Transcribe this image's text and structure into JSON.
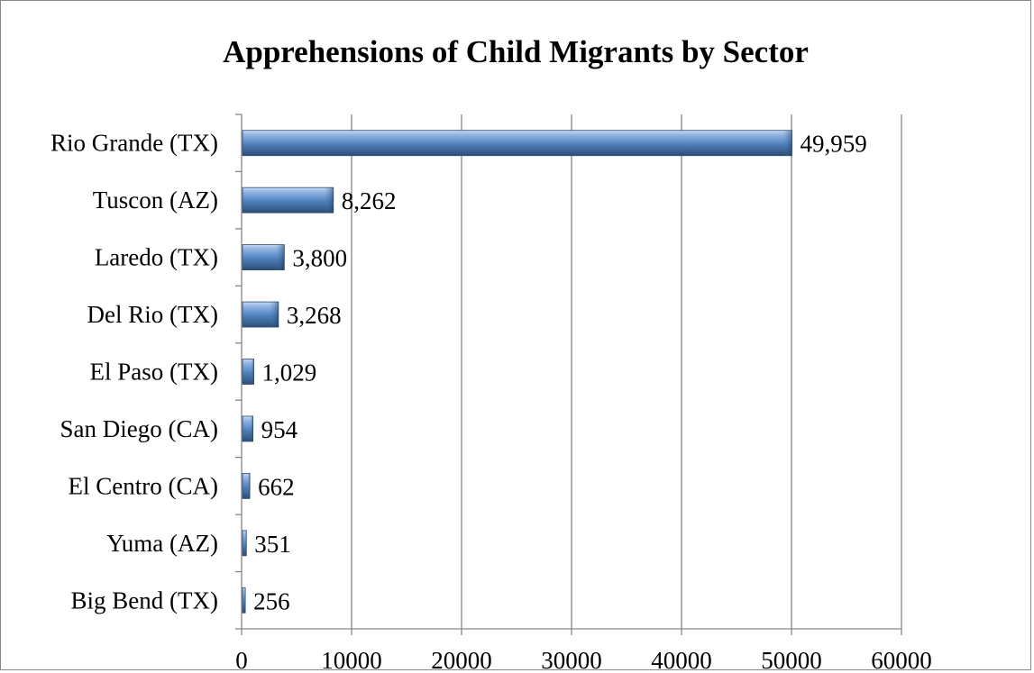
{
  "chart_data": {
    "type": "bar",
    "orientation": "horizontal",
    "title": "Apprehensions of Child Migrants by Sector",
    "xlabel": "",
    "ylabel": "",
    "categories": [
      "Rio Grande (TX)",
      "Tuscon (AZ)",
      "Laredo (TX)",
      "Del Rio (TX)",
      "El Paso (TX)",
      "San Diego (CA)",
      "El Centro (CA)",
      "Yuma (AZ)",
      "Big Bend (TX)"
    ],
    "values": [
      49959,
      8262,
      3800,
      3268,
      1029,
      954,
      662,
      351,
      256
    ],
    "data_labels": [
      "49,959",
      "8,262",
      "3,800",
      "3,268",
      "1,029",
      "954",
      "662",
      "351",
      "256"
    ],
    "xlim": [
      0,
      60000
    ],
    "x_ticks": [
      0,
      10000,
      20000,
      30000,
      40000,
      50000,
      60000
    ],
    "x_tick_labels": [
      "0",
      "10000",
      "20000",
      "30000",
      "40000",
      "50000",
      "60000"
    ],
    "grid": "vertical",
    "legend": "none",
    "colors": {
      "bar_light": "#8fb4e3",
      "bar_mid": "#4f81bd",
      "bar_dark": "#2c4d75",
      "grid": "#868686"
    }
  }
}
